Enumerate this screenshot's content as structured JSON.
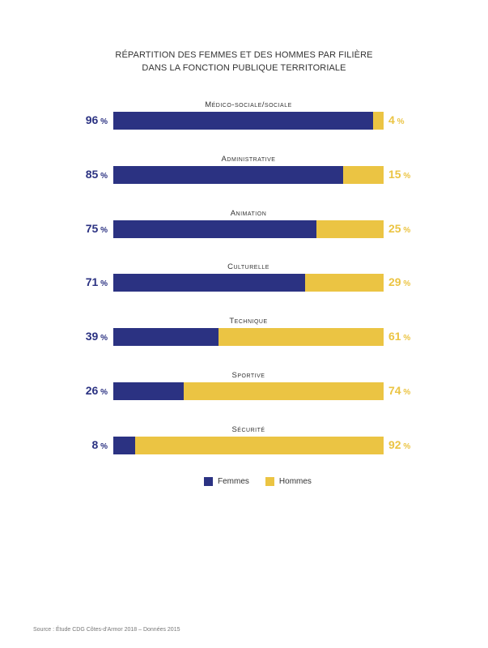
{
  "chart_data": {
    "type": "bar",
    "stacked": true,
    "orientation": "horizontal",
    "title": "RÉPARTITION DES FEMMES ET DES HOMMES PAR FILIÈRE",
    "subtitle": "DANS LA FONCTION PUBLIQUE TERRITORIALE",
    "categories": [
      "Médico-sociale/sociale",
      "Administrative",
      "Animation",
      "Culturelle",
      "Technique",
      "Sportive",
      "Sécurité"
    ],
    "series": [
      {
        "name": "Femmes",
        "color": "#2b3282",
        "values": [
          96,
          85,
          75,
          71,
          39,
          26,
          8
        ]
      },
      {
        "name": "Hommes",
        "color": "#ebc443",
        "values": [
          4,
          15,
          25,
          29,
          61,
          74,
          92
        ]
      }
    ],
    "unit": "%",
    "xlim": [
      0,
      100
    ],
    "legend_position": "bottom-center",
    "source": "Source : Étude CDG Côtes-d'Armor 2018 – Données 2015"
  }
}
